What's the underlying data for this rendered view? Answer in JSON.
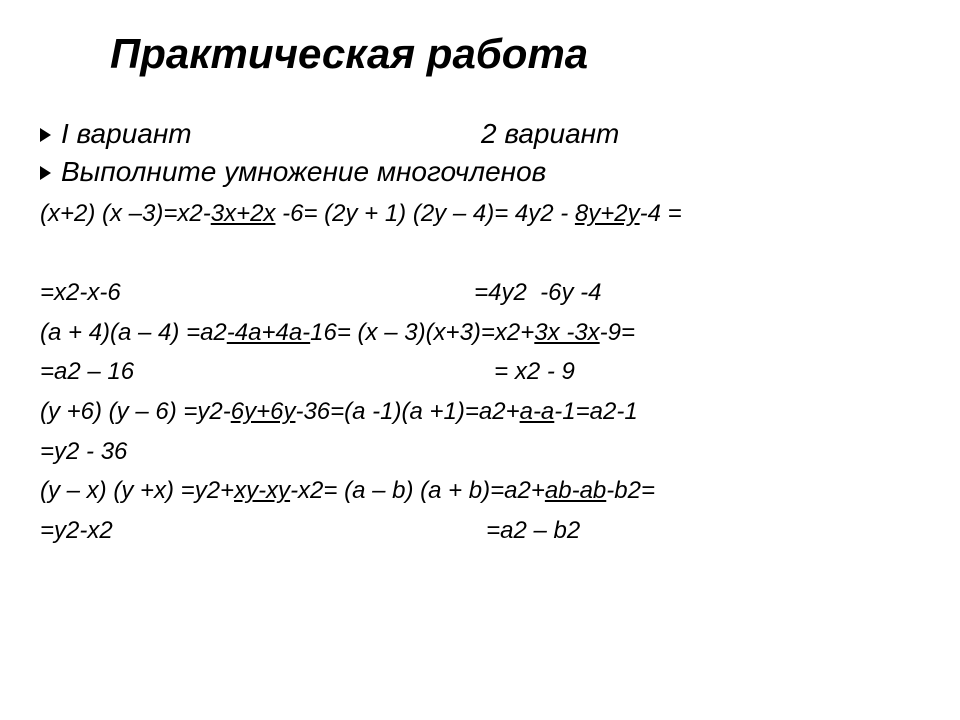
{
  "colors": {
    "text": "#000000",
    "background": "#ffffff",
    "bullet": "#000000"
  },
  "typography": {
    "title_fontsize": 42,
    "heading_fontsize": 28,
    "body_fontsize": 24,
    "style": "italic",
    "family": "Arial"
  },
  "title": "Практическая работа",
  "variant1_label": "I вариант",
  "variant2_label": "2 вариант",
  "instruction": "Выполните умножение многочленов",
  "lines": {
    "l1a": "(х+2) (х –3)=х2-",
    "l1b": "3х+2х",
    "l1c": " -6=",
    "l1d": "  (2у + 1) (2у – 4)= 4у2  - ",
    "l1e": "8у+2у",
    "l1f": "-4 =",
    "l2": " ",
    "l3": "=х2-х-6                                                     =4у2  -6у -4",
    "l4a": "(а + 4)(а – 4) =а2",
    "l4b": "-4а+4а-",
    "l4c": "16= (х – 3)(х+3)=х2+",
    "l4d": "3х -3х",
    "l4e": "-9=",
    "l5": "=а2 – 16                                                      = х2 - 9",
    "l6a": "(у +6) (у – 6) =у2-",
    "l6b": "6у+6у",
    "l6c": "-36=(а -1)(а +1)=а2+",
    "l6d": "а-а",
    "l6e": "-1=а2-1",
    "l7": "=у2 - 36",
    "l8a": "(у – х) (у +х) =у2+",
    "l8b": "ху-ху",
    "l8c": "-х2= (а – b) (a + b)=a2+",
    "l8d": "ab-ab",
    "l8e": "-b2=",
    "l9": "=у2-х2                                                        =а2 – b2"
  }
}
